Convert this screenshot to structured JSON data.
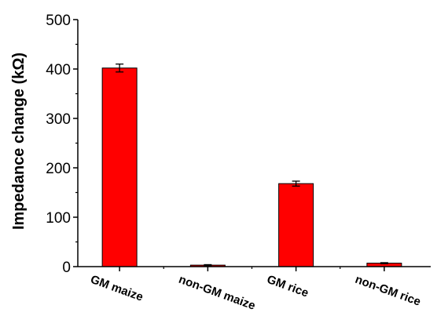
{
  "chart_data": {
    "type": "bar",
    "categories": [
      "GM maize",
      "non-GM maize",
      "GM rice",
      "non-GM rice"
    ],
    "values": [
      402,
      3,
      168,
      7
    ],
    "errors": [
      8,
      1,
      5,
      1
    ],
    "ylabel": "Impedance change (kΩ)",
    "xlabel": "",
    "ylim": [
      0,
      500
    ],
    "yticks": [
      0,
      100,
      200,
      300,
      400,
      500
    ],
    "grid": false,
    "bar_color": "#ff0000",
    "edge_color": "#000000"
  }
}
